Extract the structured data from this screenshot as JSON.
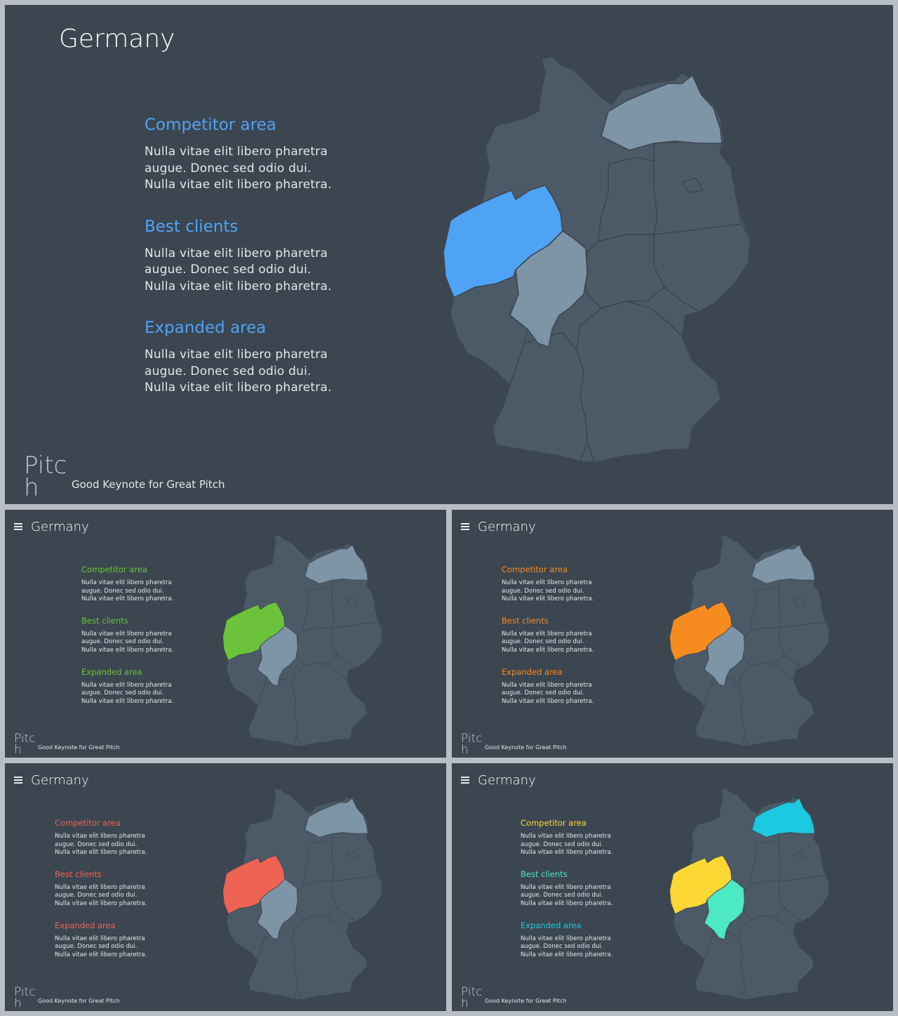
{
  "slides": [
    {
      "title": "Germany",
      "accent": "#4fa3f4",
      "secondary": "#7d95a6",
      "north": "#7d95a6",
      "sections": [
        {
          "heading": "Competitor area",
          "text": "Nulla vitae elit libero pharetra\naugue. Donec sed odio dui.\nNulla vitae elit libero pharetra.",
          "color": "#4fa3f4"
        },
        {
          "heading": "Best clients",
          "text": "Nulla vitae elit libero pharetra\naugue. Donec sed odio dui.\nNulla vitae elit libero pharetra.",
          "color": "#4fa3f4"
        },
        {
          "heading": "Expanded area",
          "text": "Nulla vitae elit libero pharetra\naugue. Donec sed odio dui.\nNulla vitae elit libero pharetra.",
          "color": "#4fa3f4"
        }
      ],
      "brand_line1": "Pitc",
      "brand_line2": "h",
      "tagline": "Good Keynote for Great Pitch"
    },
    {
      "title": "Germany",
      "accent": "#6cc23a",
      "secondary": "#7d95a6",
      "north": "#7d95a6",
      "sections": [
        {
          "heading": "Competitor area",
          "text": "Nulla vitae elit libero pharetra\naugue. Donec sed odio dui.\nNulla vitae elit libero pharetra.",
          "color": "#6cc23a"
        },
        {
          "heading": "Best clients",
          "text": "Nulla vitae elit libero pharetra\naugue. Donec sed odio dui.\nNulla vitae elit libero pharetra.",
          "color": "#6cc23a"
        },
        {
          "heading": "Expanded area",
          "text": "Nulla vitae elit libero pharetra\naugue. Donec sed odio dui.\nNulla vitae elit libero pharetra.",
          "color": "#6cc23a"
        }
      ],
      "brand_line1": "Pitc",
      "brand_line2": "h",
      "tagline": "Good Keynote for Great Pitch"
    },
    {
      "title": "Germany",
      "accent": "#f68b1f",
      "secondary": "#7d95a6",
      "north": "#7d95a6",
      "sections": [
        {
          "heading": "Competitor area",
          "text": "Nulla vitae elit libero pharetra\naugue. Donec sed odio dui.\nNulla vitae elit libero pharetra.",
          "color": "#f68b1f"
        },
        {
          "heading": "Best clients",
          "text": "Nulla vitae elit libero pharetra\naugue. Donec sed odio dui.\nNulla vitae elit libero pharetra.",
          "color": "#f68b1f"
        },
        {
          "heading": "Expanded area",
          "text": "Nulla vitae elit libero pharetra\naugue. Donec sed odio dui.\nNulla vitae elit libero pharetra.",
          "color": "#f68b1f"
        }
      ],
      "brand_line1": "Pitc",
      "brand_line2": "h",
      "tagline": "Good Keynote for Great Pitch"
    },
    {
      "title": "Germany",
      "accent": "#ee6352",
      "secondary": "#7d95a6",
      "north": "#7d95a6",
      "sections": [
        {
          "heading": "Competitor area",
          "text": "Nulla vitae elit libero pharetra\naugue. Donec sed odio dui.\nNulla vitae elit libero pharetra.",
          "color": "#ee6352"
        },
        {
          "heading": "Best clients",
          "text": "Nulla vitae elit libero pharetra\naugue. Donec sed odio dui.\nNulla vitae elit libero pharetra.",
          "color": "#ee6352"
        },
        {
          "heading": "Expanded area",
          "text": "Nulla vitae elit libero pharetra\naugue. Donec sed odio dui.\nNulla vitae elit libero pharetra.",
          "color": "#ee6352"
        }
      ],
      "brand_line1": "Pitc",
      "brand_line2": "h",
      "tagline": "Good Keynote for Great Pitch"
    },
    {
      "title": "Germany",
      "accent": "#fdd835",
      "secondary": "#4de8c4",
      "north": "#1cc9e0",
      "sections": [
        {
          "heading": "Competitor area",
          "text": "Nulla vitae elit libero pharetra\naugue. Donec sed odio dui.\nNulla vitae elit libero pharetra.",
          "color": "#fdd835"
        },
        {
          "heading": "Best clients",
          "text": "Nulla vitae elit libero pharetra\naugue. Donec sed odio dui.\nNulla vitae elit libero pharetra.",
          "color": "#4de8c4"
        },
        {
          "heading": "Expanded area",
          "text": "Nulla vitae elit libero pharetra\naugue. Donec sed odio dui.\nNulla vitae elit libero pharetra.",
          "color": "#1cc9e0"
        }
      ],
      "brand_line1": "Pitc",
      "brand_line2": "h",
      "tagline": "Good Keynote for Great Pitch"
    }
  ]
}
